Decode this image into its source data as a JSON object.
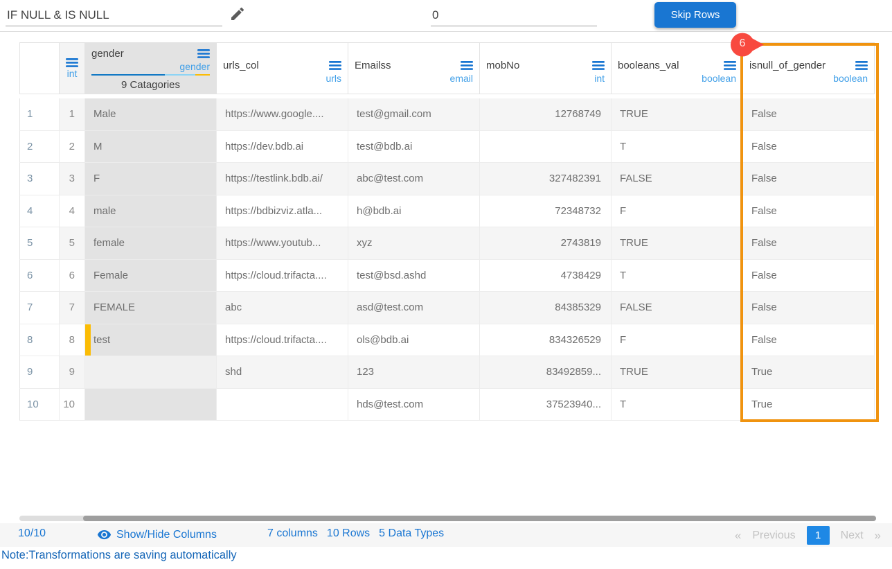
{
  "toolbar": {
    "transform_input": "IF NULL & IS NULL",
    "skip_rows_input": "0",
    "skip_rows_button": "Skip Rows"
  },
  "annotation": {
    "badge_count": "6"
  },
  "colors": {
    "primary_blue": "#1976d2",
    "type_label_blue": "#42a0e8",
    "highlight_orange": "#f0930f",
    "badge_red": "#f8493f",
    "marker_yellow": "#fbbc05",
    "page_box_blue": "#1e88e5"
  },
  "table": {
    "columns": [
      {
        "id": "rownum",
        "title": "",
        "type": "",
        "align": "left"
      },
      {
        "id": "index",
        "title": "",
        "type": "int",
        "align": "right"
      },
      {
        "id": "gender",
        "title": "gender",
        "type": "gender",
        "align": "left",
        "categories_label": "9 Catagories",
        "distribution": [
          {
            "color": "#1178c4",
            "pct": 62
          },
          {
            "color": "#8ed4f5",
            "pct": 26
          },
          {
            "color": "#fbbc05",
            "pct": 12
          }
        ]
      },
      {
        "id": "urls_col",
        "title": "urls_col",
        "type": "urls",
        "align": "left"
      },
      {
        "id": "emailss",
        "title": "Emailss",
        "type": "email",
        "align": "left"
      },
      {
        "id": "mobno",
        "title": "mobNo",
        "type": "int",
        "align": "right"
      },
      {
        "id": "booleans_val",
        "title": "booleans_val",
        "type": "boolean",
        "align": "left"
      },
      {
        "id": "isnull_of_gender",
        "title": "isnull_of_gender",
        "type": "boolean",
        "align": "left",
        "highlighted": true
      }
    ],
    "rows": [
      {
        "num": "1",
        "cells": [
          "1",
          "Male",
          "https://www.google....",
          "test@gmail.com",
          "12768749",
          "TRUE",
          "False"
        ]
      },
      {
        "num": "2",
        "cells": [
          "2",
          "M",
          "https://dev.bdb.ai",
          "test@bdb.ai",
          "",
          "T",
          "False"
        ]
      },
      {
        "num": "3",
        "cells": [
          "3",
          "F",
          "https://testlink.bdb.ai/",
          "abc@test.com",
          "327482391",
          "FALSE",
          "False"
        ]
      },
      {
        "num": "4",
        "cells": [
          "4",
          "male",
          "https://bdbizviz.atla...",
          "h@bdb.ai",
          "72348732",
          "F",
          "False"
        ]
      },
      {
        "num": "5",
        "cells": [
          "5",
          "female",
          "https://www.youtub...",
          "xyz",
          "2743819",
          "TRUE",
          "False"
        ]
      },
      {
        "num": "6",
        "cells": [
          "6",
          "Female",
          "https://cloud.trifacta....",
          "test@bsd.ashd",
          "4738429",
          "T",
          "False"
        ]
      },
      {
        "num": "7",
        "cells": [
          "7",
          "FEMALE",
          "abc",
          "asd@test.com",
          "84385329",
          "FALSE",
          "False"
        ]
      },
      {
        "num": "8",
        "cells": [
          "8",
          "test",
          "https://cloud.trifacta....",
          "ols@bdb.ai",
          "834326529",
          "F",
          "False"
        ],
        "gender_marker": true
      },
      {
        "num": "9",
        "cells": [
          "9",
          "",
          "shd",
          "123",
          "83492859...",
          "TRUE",
          "True"
        ],
        "gender_light": true
      },
      {
        "num": "10",
        "cells": [
          "10",
          "",
          "",
          "hds@test.com",
          "37523940...",
          "T",
          "True"
        ]
      }
    ]
  },
  "footer": {
    "page_ratio": "10/10",
    "show_hide_label": "Show/Hide Columns",
    "columns_count": "7 columns",
    "rows_count": "10 Rows",
    "datatypes_count": "5 Data Types",
    "prev_symbol": "«",
    "prev_label": "Previous",
    "current_page": "1",
    "next_label": "Next",
    "next_symbol": "»"
  },
  "note": "Note:Transformations are saving automatically"
}
